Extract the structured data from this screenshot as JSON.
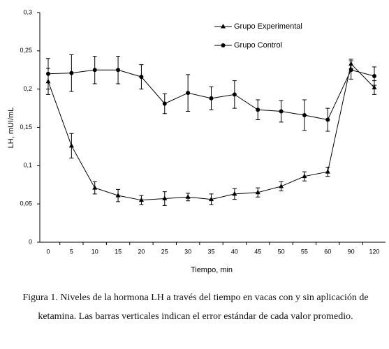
{
  "chart_data": {
    "type": "line",
    "y_label": "LH, mUI/mL",
    "x_label": "Tiempo, min",
    "categories": [
      "0",
      "5",
      "10",
      "15",
      "20",
      "25",
      "30",
      "35",
      "40",
      "45",
      "50",
      "55",
      "60",
      "90",
      "120"
    ],
    "series": [
      {
        "name": "Grupo Experimental",
        "marker": "triangle",
        "color": "#000000",
        "values": [
          0.21,
          0.126,
          0.071,
          0.061,
          0.055,
          0.057,
          0.059,
          0.056,
          0.063,
          0.065,
          0.073,
          0.086,
          0.092,
          0.233,
          0.202
        ],
        "errors": [
          0.017,
          0.016,
          0.008,
          0.008,
          0.006,
          0.009,
          0.005,
          0.007,
          0.007,
          0.006,
          0.006,
          0.006,
          0.006,
          0.006,
          0.009
        ]
      },
      {
        "name": "Grupo Control",
        "marker": "circle",
        "color": "#000000",
        "values": [
          0.22,
          0.221,
          0.225,
          0.225,
          0.216,
          0.181,
          0.195,
          0.188,
          0.193,
          0.173,
          0.171,
          0.166,
          0.16,
          0.225,
          0.217
        ],
        "errors": [
          0.02,
          0.024,
          0.018,
          0.018,
          0.016,
          0.013,
          0.024,
          0.015,
          0.018,
          0.013,
          0.014,
          0.02,
          0.015,
          0.012,
          0.012
        ]
      }
    ],
    "ylim": [
      0,
      0.3
    ],
    "yticks": [
      0,
      {
        "value": 0.05,
        "label": "0,05"
      },
      {
        "value": 0.1,
        "label": "0,1"
      },
      {
        "value": 0.15,
        "label": "0,15"
      },
      {
        "value": 0.2,
        "label": "0,2"
      },
      {
        "value": 0.25,
        "label": "0,25"
      },
      {
        "value": 0.3,
        "label": "0,3"
      }
    ],
    "grid": false,
    "legend": "top"
  },
  "caption": "Figura 1. Niveles de la hormona LH a través del tiempo en vacas con y sin aplicación de ketamina. Las barras verticales indican el error estándar de cada valor promedio."
}
